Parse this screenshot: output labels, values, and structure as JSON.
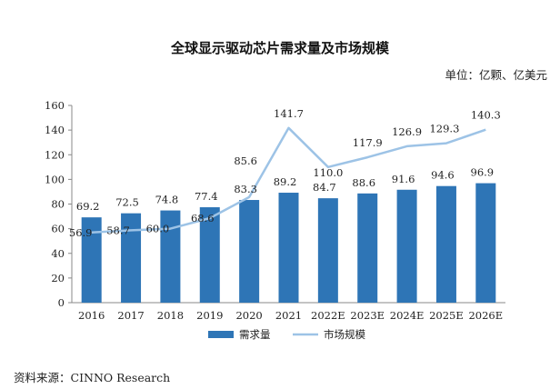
{
  "title": "全球显示驱动芯片需求量及市场规模",
  "unit": "单位：亿颗、亿美元",
  "source": "资料来源：CINNO Research",
  "colors": {
    "bar": "#2E75B6",
    "line": "#9DC3E6",
    "axis": "#888888",
    "text": "#222222"
  },
  "chart_data": {
    "type": "bar+line",
    "title": "全球显示驱动芯片需求量及市场规模",
    "categories": [
      "2016",
      "2017",
      "2018",
      "2019",
      "2020",
      "2021",
      "2022E",
      "2023E",
      "2024E",
      "2025E",
      "2026E"
    ],
    "series": [
      {
        "name": "需求量",
        "type": "bar",
        "values": [
          69.2,
          72.5,
          74.8,
          77.4,
          83.3,
          89.2,
          84.7,
          88.6,
          91.6,
          94.6,
          96.9
        ]
      },
      {
        "name": "市场规模",
        "type": "line",
        "values": [
          56.9,
          58.7,
          60.0,
          68.6,
          85.6,
          141.7,
          110.0,
          117.9,
          126.9,
          129.3,
          140.3
        ]
      }
    ],
    "bar_labels": [
      "69.2",
      "72.5",
      "74.8",
      "77.4",
      "83.3",
      "89.2",
      "84.7",
      "88.6",
      "91.6",
      "94.6",
      "96.9"
    ],
    "line_labels": [
      "56.9",
      "58.7",
      "60.0",
      "68.6",
      "85.6",
      "141.7",
      "110.0",
      "117.9",
      "126.9",
      "129.3",
      "140.3"
    ],
    "yticks": [
      "0",
      "20",
      "40",
      "60",
      "80",
      "100",
      "120",
      "140",
      "160"
    ],
    "ylim": [
      0,
      160
    ],
    "legend": [
      "需求量",
      "市场规模"
    ],
    "legend_position": "bottom"
  }
}
